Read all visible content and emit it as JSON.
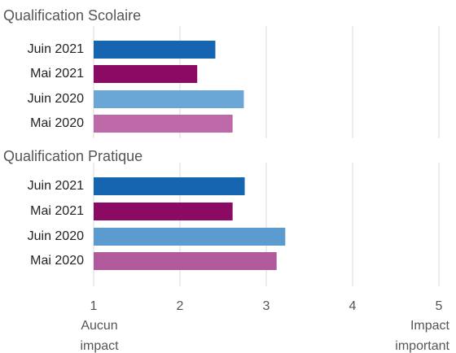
{
  "chart_data": [
    {
      "type": "bar",
      "orientation": "horizontal",
      "title": "Qualification Scolaire",
      "categories": [
        "Juin 2021",
        "Mai 2021",
        "Juin 2020",
        "Mai 2020"
      ],
      "values": [
        2.41,
        2.2,
        2.74,
        2.61
      ],
      "colors": [
        "#1565b0",
        "#8b0a63",
        "#6aa6d6",
        "#bf6aa8"
      ],
      "xlim": [
        1,
        5
      ],
      "xticks": [
        1,
        2,
        3,
        4,
        5
      ],
      "grid": true
    },
    {
      "type": "bar",
      "orientation": "horizontal",
      "title": "Qualification Pratique",
      "categories": [
        "Juin 2021",
        "Mai 2021",
        "Juin 2020",
        "Mai 2020"
      ],
      "values": [
        2.75,
        2.61,
        3.22,
        3.12
      ],
      "colors": [
        "#1565b0",
        "#8b0a63",
        "#5b9bd0",
        "#b05a9c"
      ],
      "xlim": [
        1,
        5
      ],
      "xticks": [
        1,
        2,
        3,
        4,
        5
      ],
      "grid": true,
      "axis_annotations": [
        "Aucun impact",
        "Impact important"
      ]
    }
  ]
}
